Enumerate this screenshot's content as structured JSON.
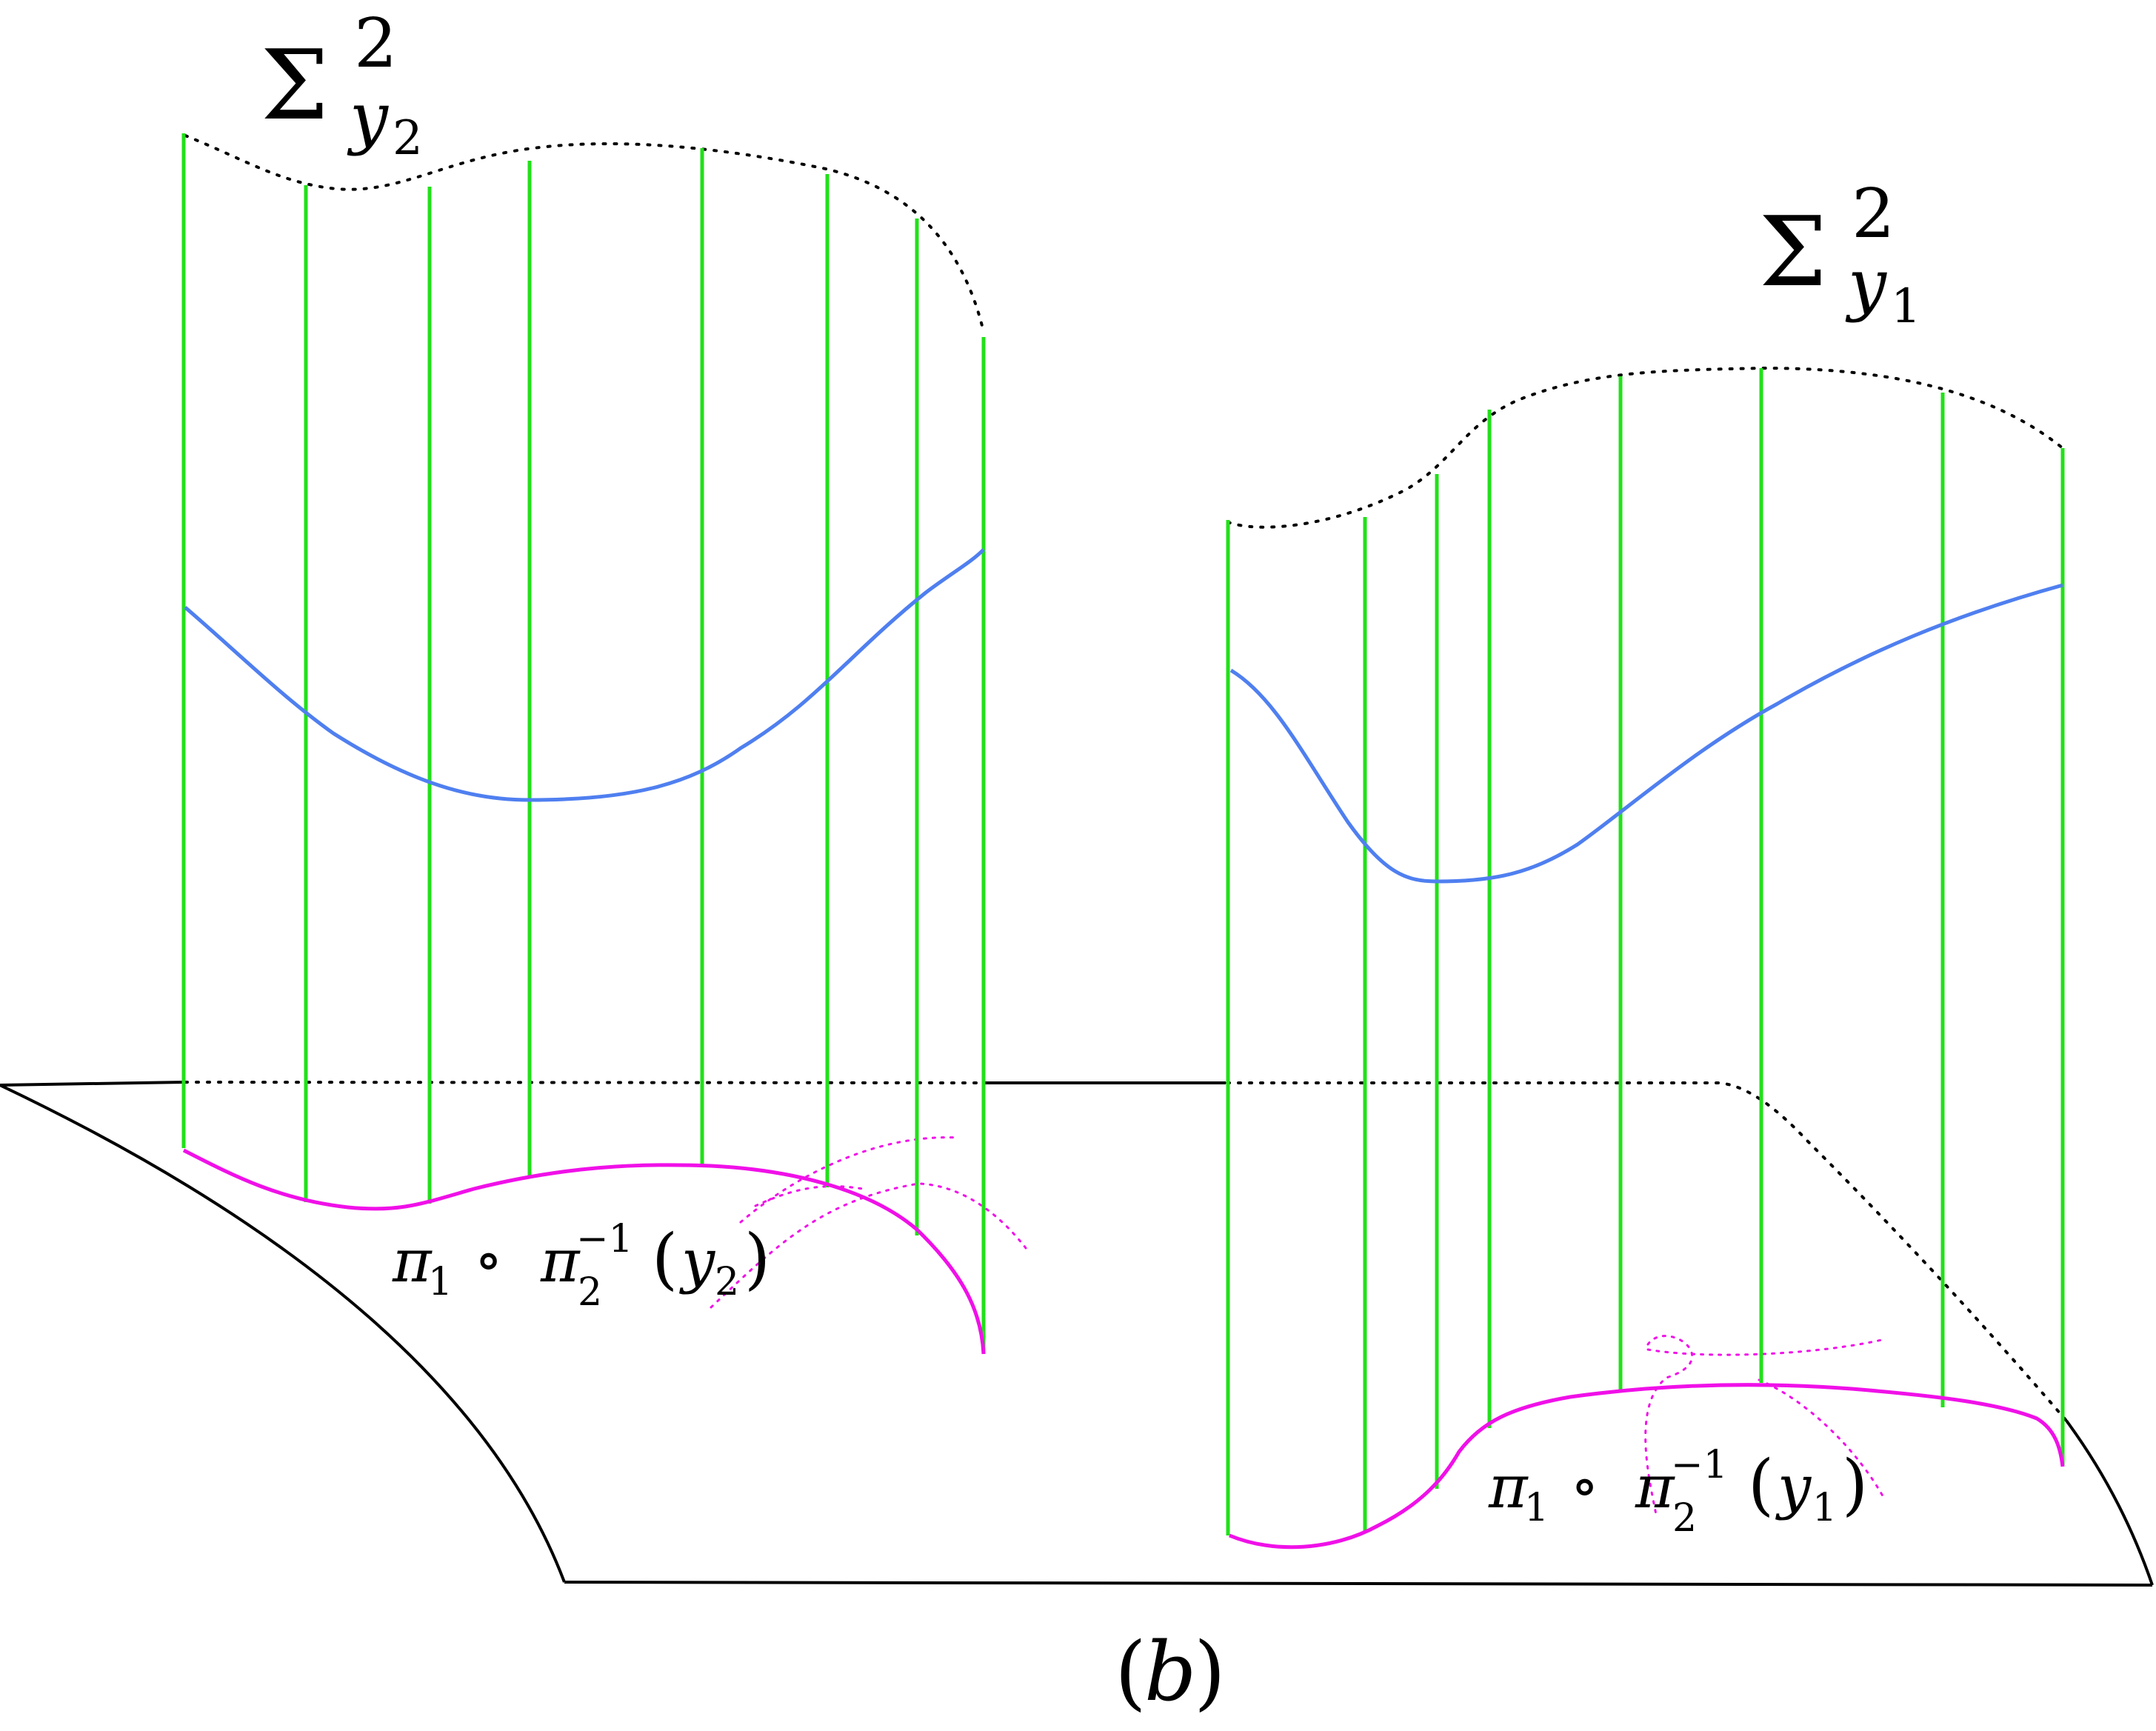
{
  "labels": {
    "sigma_left": {
      "symbol": "Σ",
      "superscript": "2",
      "subscript_var": "y",
      "subscript_index": "2"
    },
    "sigma_right": {
      "symbol": "Σ",
      "superscript": "2",
      "subscript_var": "y",
      "subscript_index": "1"
    },
    "preimage_left": {
      "pi": "π",
      "sub1": "1",
      "circ": "∘",
      "sub2": "2",
      "sup": "−1",
      "open": "(",
      "var": "y",
      "var_index": "2",
      "close": ")"
    },
    "preimage_right": {
      "pi": "π",
      "sub1": "1",
      "circ": "∘",
      "sub2": "2",
      "sup": "−1",
      "open": "(",
      "var": "y",
      "var_index": "1",
      "close": ")"
    },
    "caption": {
      "open": "(",
      "letter": "b",
      "close": ")"
    }
  },
  "colors": {
    "fiber_line": "#22e01a",
    "section_curve": "#4f7ff0",
    "base_curve": "#f010e8",
    "outline": "#000000"
  }
}
